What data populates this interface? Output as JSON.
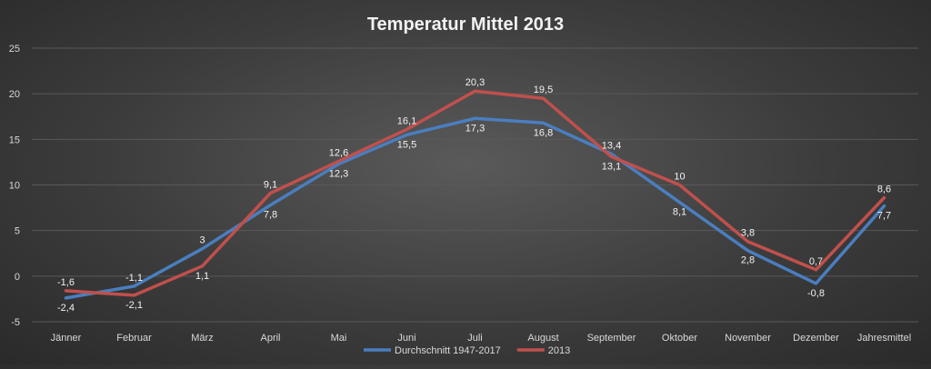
{
  "chart_data": {
    "type": "line",
    "title": "Temperatur Mittel 2013",
    "xlabel": "",
    "ylabel": "",
    "ylim": [
      -5,
      25
    ],
    "yticks": [
      -5,
      0,
      5,
      10,
      15,
      20,
      25
    ],
    "grid": true,
    "legend_position": "bottom",
    "categories": [
      "Jänner",
      "Februar",
      "März",
      "April",
      "Mai",
      "Juni",
      "Juli",
      "August",
      "September",
      "Oktober",
      "November",
      "Dezember",
      "Jahresmittel"
    ],
    "series": [
      {
        "name": "Durchschnitt 1947-2017",
        "color": "#4a7ebf",
        "values": [
          -2.4,
          -1.1,
          3.0,
          7.8,
          12.3,
          15.5,
          17.3,
          16.8,
          13.4,
          8.1,
          2.8,
          -0.8,
          7.7
        ],
        "labels": [
          "-2,4",
          "-1,1",
          "3",
          "7,8",
          "12,3",
          "15,5",
          "17,3",
          "16,8",
          "13,4",
          "8,1",
          "2,8",
          "-0,8",
          "7,7"
        ]
      },
      {
        "name": "2013",
        "color": "#c0504d",
        "values": [
          -1.6,
          -2.1,
          1.1,
          9.1,
          12.6,
          16.1,
          20.3,
          19.5,
          13.1,
          10.0,
          3.8,
          0.7,
          8.6
        ],
        "labels": [
          "-1,6",
          "-2,1",
          "1,1",
          "9,1",
          "12,6",
          "16,1",
          "20,3",
          "19,5",
          "13,1",
          "10",
          "3,8",
          "0,7",
          "8,6"
        ]
      }
    ]
  }
}
